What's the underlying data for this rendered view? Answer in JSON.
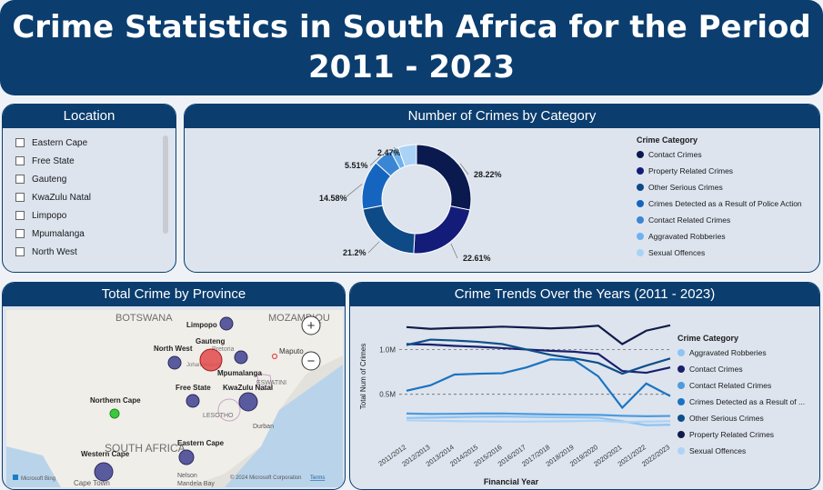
{
  "header": {
    "title_line1": "Crime Statistics in South Africa for the Period",
    "title_line2": "2011 - 2023"
  },
  "location": {
    "title": "Location",
    "items": [
      "Eastern Cape",
      "Free State",
      "Gauteng",
      "KwaZulu Natal",
      "Limpopo",
      "Mpumalanga",
      "North West"
    ]
  },
  "donut": {
    "title": "Number of Crimes by Category",
    "legend_title": "Crime Category",
    "chart_data": {
      "type": "pie",
      "title": "Number of Crimes by Category",
      "categories": [
        "Contact Crimes",
        "Property Related Crimes",
        "Other Serious Crimes",
        "Crimes Detected as a Result of Police Action",
        "Contact Related Crimes",
        "Aggravated Robberies",
        "Sexual Offences"
      ],
      "values": [
        28.22,
        22.61,
        21.2,
        14.58,
        5.51,
        2.47,
        5.41
      ],
      "labels": [
        "28.22%",
        "22.61%",
        "21.2%",
        "14.58%",
        "5.51%",
        "2.47%",
        ""
      ],
      "colors": [
        "#0a1a4f",
        "#141c7a",
        "#0e4a86",
        "#1565c0",
        "#3a86d4",
        "#6fb1ec",
        "#a9d2f5"
      ]
    }
  },
  "map": {
    "title": "Total Crime by Province",
    "labels": {
      "botswana": "BOTSWANA",
      "mozambique": "MOZAMBIQU",
      "south_africa": "SOUTH AFRICA",
      "lesotho": "LESOTHO",
      "eswatini": "ESWATINI",
      "limpopo": "Limpopo",
      "gauteng": "Gauteng",
      "north_west": "North West",
      "pretoria": "Pretoria",
      "johannesburg": "Johannesburg",
      "mpumalanga": "Mpumalanga",
      "free_state": "Free State",
      "kwazulu_natal": "KwaZulu Natal",
      "northern_cape": "Northern Cape",
      "eastern_cape": "Eastern Cape",
      "western_cape": "Western Cape",
      "maputo": "Maputo",
      "durban": "Durban",
      "nelson": "Nelson",
      "mandela_bay": "Mandela Bay",
      "cape_town": "Cape Town"
    },
    "zoom_in": "+",
    "zoom_out": "−",
    "bing": "Microsoft Bing",
    "copyright": "© 2024 Microsoft Corporation",
    "terms": "Terms",
    "bubble_color": "#4a4a8f",
    "highlight_color": "#e24a4a",
    "green_color": "#3cc93c"
  },
  "trends": {
    "title": "Crime Trends Over the Years (2011 - 2023)",
    "legend_title": "Crime Category",
    "chart_data": {
      "type": "line",
      "title": "Crime Trends Over the Years (2011 - 2023)",
      "xlabel": "Financial Year",
      "ylabel": "Total Num of Crimes",
      "x": [
        "2011/2012",
        "2012/2013",
        "2013/2014",
        "2014/2015",
        "2015/2016",
        "2016/2017",
        "2017/2018",
        "2018/2019",
        "2019/2020",
        "2020/2021",
        "2021/2022",
        "2022/2023"
      ],
      "ylim": [
        0,
        1400000
      ],
      "yticks": [
        500000,
        1000000
      ],
      "ytick_labels": [
        "0.5M",
        "1.0M"
      ],
      "series": [
        {
          "name": "Aggravated Robberies",
          "color": "#8ec3f2",
          "values": [
            235000,
            240000,
            245000,
            250000,
            252000,
            248000,
            245000,
            242000,
            238000,
            200000,
            155000,
            160000
          ]
        },
        {
          "name": "Contact Crimes",
          "color": "#1a1f6e",
          "values": [
            1060000,
            1055000,
            1040000,
            1030000,
            1015000,
            1000000,
            985000,
            975000,
            950000,
            760000,
            740000,
            800000
          ]
        },
        {
          "name": "Contact Related Crimes",
          "color": "#4d9be0",
          "values": [
            285000,
            280000,
            282000,
            285000,
            286000,
            280000,
            275000,
            272000,
            270000,
            260000,
            255000,
            258000
          ]
        },
        {
          "name": "Crimes Detected as a Result of ...",
          "color": "#1a73c2",
          "values": [
            540000,
            600000,
            720000,
            730000,
            735000,
            800000,
            890000,
            880000,
            700000,
            350000,
            620000,
            480000
          ]
        },
        {
          "name": "Other Serious Crimes",
          "color": "#0e4f8a",
          "values": [
            1050000,
            1110000,
            1100000,
            1085000,
            1060000,
            1000000,
            940000,
            900000,
            850000,
            730000,
            820000,
            900000
          ]
        },
        {
          "name": "Property Related Crimes",
          "color": "#101c4a",
          "values": [
            1250000,
            1230000,
            1240000,
            1245000,
            1255000,
            1245000,
            1235000,
            1245000,
            1265000,
            1060000,
            1210000,
            1270000
          ]
        },
        {
          "name": "Sexual Offences",
          "color": "#aed3f6",
          "values": [
            210000,
            205000,
            200000,
            198000,
            196000,
            195000,
            198000,
            200000,
            205000,
            190000,
            195000,
            200000
          ]
        }
      ]
    }
  }
}
